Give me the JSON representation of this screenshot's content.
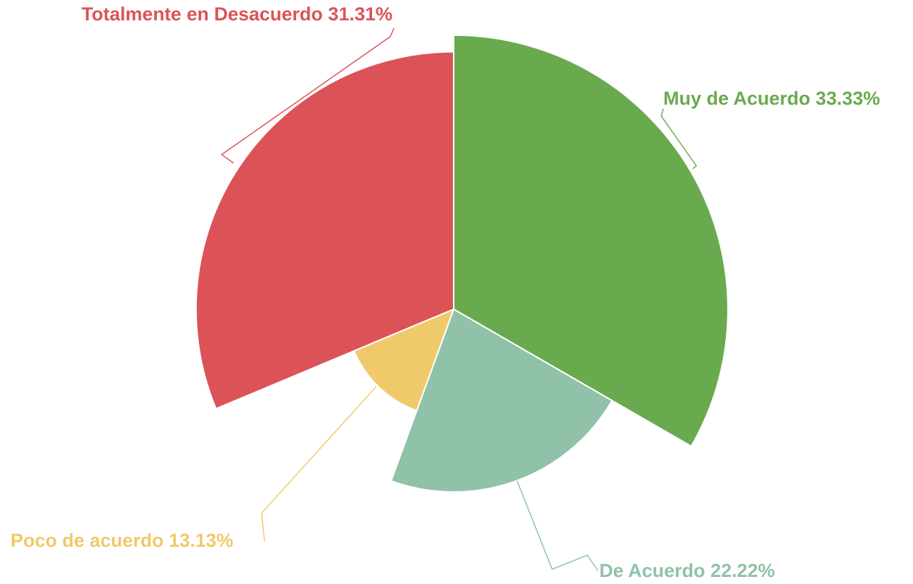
{
  "chart_data": {
    "type": "rose",
    "categories": [
      "Muy de Acuerdo",
      "De Acuerdo",
      "Poco de acuerdo",
      "Totalmente en Desacuerdo"
    ],
    "values": [
      33.33,
      22.22,
      13.13,
      31.31
    ],
    "value_labels": [
      "33.33%",
      "22.22%",
      "13.13%",
      "31.31%"
    ],
    "colors": [
      "#6aaa4f",
      "#8fc2a8",
      "#f0c96a",
      "#dc5357"
    ]
  }
}
